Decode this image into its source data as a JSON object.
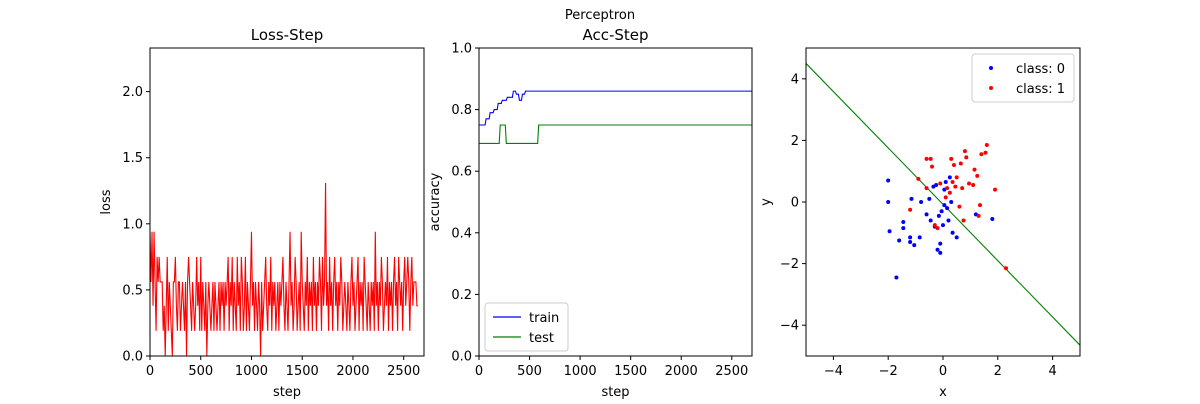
{
  "figure_title": "Perceptron",
  "chart_data": [
    {
      "type": "line",
      "title": "Loss-Step",
      "xlabel": "step",
      "ylabel": "loss",
      "xlim": [
        0,
        2700
      ],
      "ylim": [
        0,
        2.33
      ],
      "xticks": [
        0,
        500,
        1000,
        1500,
        2000,
        2500
      ],
      "yticks": [
        0.0,
        0.5,
        1.0,
        1.5,
        2.0
      ],
      "xtick_labels": [
        "0",
        "500",
        "1000",
        "1500",
        "2000",
        "2500"
      ],
      "ytick_labels": [
        "0.0",
        "0.5",
        "1.0",
        "1.5",
        "2.0"
      ],
      "grid": false,
      "series": [
        {
          "color": "#ff0000",
          "x_start": 0,
          "x_step": 10,
          "values": [
            0.94,
            0.56,
            0.94,
            0.38,
            0.94,
            0.56,
            0.19,
            0.75,
            0.56,
            0.75,
            0.56,
            0.56,
            0.56,
            0.19,
            0.38,
            0.0,
            0.38,
            0.75,
            0.19,
            0.56,
            0.38,
            0.19,
            0.0,
            0.56,
            0.56,
            0.75,
            0.38,
            0.19,
            0.56,
            0.56,
            0.19,
            0.38,
            0.56,
            0.38,
            0.19,
            0.56,
            0.0,
            0.56,
            0.75,
            0.56,
            0.38,
            0.19,
            0.56,
            0.38,
            0.19,
            0.38,
            0.75,
            0.38,
            0.56,
            0.19,
            0.75,
            0.19,
            0.56,
            0.38,
            0.19,
            0.56,
            0.0,
            0.38,
            0.56,
            0.38,
            0.19,
            0.38,
            0.56,
            0.19,
            0.56,
            0.38,
            0.19,
            0.38,
            0.56,
            0.19,
            0.56,
            0.38,
            0.56,
            0.19,
            0.56,
            0.38,
            0.56,
            0.75,
            0.19,
            0.56,
            0.38,
            0.75,
            0.19,
            0.56,
            0.38,
            0.19,
            0.75,
            0.38,
            0.56,
            0.19,
            0.75,
            0.56,
            0.19,
            0.38,
            0.75,
            0.19,
            0.56,
            0.38,
            0.19,
            0.56,
            0.94,
            0.38,
            0.56,
            0.19,
            0.56,
            0.38,
            0.19,
            0.56,
            0.38,
            0.0,
            0.56,
            0.19,
            0.38,
            0.56,
            0.75,
            0.38,
            0.19,
            0.56,
            0.38,
            0.75,
            0.19,
            0.56,
            0.38,
            0.56,
            0.19,
            0.38,
            0.56,
            0.19,
            0.56,
            0.38,
            0.56,
            0.75,
            0.38,
            0.19,
            0.56,
            0.38,
            0.19,
            0.56,
            0.94,
            0.38,
            0.56,
            0.19,
            0.38,
            0.75,
            0.56,
            0.19,
            0.38,
            0.56,
            0.19,
            0.94,
            0.56,
            0.38,
            0.19,
            0.56,
            0.38,
            0.75,
            0.19,
            0.56,
            0.38,
            0.56,
            0.19,
            0.75,
            0.38,
            0.56,
            0.19,
            0.56,
            0.38,
            0.75,
            0.56,
            0.19,
            0.75,
            0.38,
            0.56,
            1.31,
            0.38,
            0.56,
            0.19,
            0.75,
            0.38,
            0.56,
            0.19,
            0.56,
            0.75,
            0.38,
            0.56,
            0.19,
            0.56,
            0.38,
            0.75,
            0.56,
            0.19,
            0.38,
            0.56,
            0.38,
            0.19,
            0.56,
            0.38,
            0.19,
            0.56,
            0.75,
            0.38,
            0.56,
            0.19,
            0.38,
            0.56,
            0.75,
            0.19,
            0.56,
            0.38,
            0.56,
            0.19,
            0.75,
            0.56,
            0.38,
            0.19,
            0.56,
            0.38,
            0.19,
            0.56,
            0.38,
            0.56,
            0.19,
            0.94,
            0.38,
            0.56,
            0.19,
            0.56,
            0.38,
            0.75,
            0.56,
            0.19,
            0.38,
            0.56,
            0.38,
            0.75,
            0.19,
            0.56,
            0.38,
            0.56,
            0.19,
            0.56,
            0.75,
            0.38,
            0.56,
            0.19,
            0.75,
            0.56,
            0.38,
            0.56,
            0.19,
            0.56,
            0.75,
            0.38,
            0.56,
            0.75,
            0.56,
            0.19,
            0.56,
            0.75,
            0.38,
            0.56,
            0.56,
            0.56,
            0.38,
            0.38
          ]
        }
      ]
    },
    {
      "type": "line",
      "title": "Acc-Step",
      "xlabel": "step",
      "ylabel": "accuracy",
      "xlim": [
        0,
        2700
      ],
      "ylim": [
        0,
        1.0
      ],
      "xticks": [
        0,
        500,
        1000,
        1500,
        2000,
        2500
      ],
      "yticks": [
        0.0,
        0.2,
        0.4,
        0.6,
        0.8,
        1.0
      ],
      "xtick_labels": [
        "0",
        "500",
        "1000",
        "1500",
        "2000",
        "2500"
      ],
      "ytick_labels": [
        "0.0",
        "0.2",
        "0.4",
        "0.6",
        "0.8",
        "1.0"
      ],
      "grid": false,
      "legend_position": "lower-left",
      "series": [
        {
          "name": "train",
          "color": "#0000ff",
          "points": [
            [
              0,
              0.75
            ],
            [
              60,
              0.75
            ],
            [
              70,
              0.77
            ],
            [
              100,
              0.77
            ],
            [
              110,
              0.79
            ],
            [
              140,
              0.79
            ],
            [
              150,
              0.8
            ],
            [
              180,
              0.8
            ],
            [
              190,
              0.82
            ],
            [
              220,
              0.82
            ],
            [
              230,
              0.83
            ],
            [
              270,
              0.83
            ],
            [
              280,
              0.84
            ],
            [
              330,
              0.84
            ],
            [
              340,
              0.86
            ],
            [
              360,
              0.86
            ],
            [
              370,
              0.85
            ],
            [
              390,
              0.85
            ],
            [
              400,
              0.83
            ],
            [
              420,
              0.83
            ],
            [
              430,
              0.85
            ],
            [
              450,
              0.85
            ],
            [
              460,
              0.86
            ],
            [
              2700,
              0.86
            ]
          ]
        },
        {
          "name": "test",
          "color": "#008000",
          "points": [
            [
              0,
              0.69
            ],
            [
              200,
              0.69
            ],
            [
              210,
              0.75
            ],
            [
              260,
              0.75
            ],
            [
              270,
              0.69
            ],
            [
              580,
              0.69
            ],
            [
              590,
              0.75
            ],
            [
              2700,
              0.75
            ]
          ]
        }
      ]
    },
    {
      "type": "scatter",
      "title": "",
      "xlabel": "x",
      "ylabel": "y",
      "xlim": [
        -5,
        5
      ],
      "ylim": [
        -5,
        5
      ],
      "xticks": [
        -4,
        -2,
        0,
        2,
        4
      ],
      "yticks": [
        -4,
        -2,
        0,
        2,
        4
      ],
      "xtick_labels": [
        "−4",
        "−2",
        "0",
        "2",
        "4"
      ],
      "ytick_labels": [
        "−4",
        "−2",
        "0",
        "2",
        "4"
      ],
      "grid": false,
      "legend_position": "upper-right",
      "series": [
        {
          "name": "class: 0",
          "color": "#0000ff",
          "points": [
            [
              -2.0,
              0.7
            ],
            [
              -2.0,
              0.0
            ],
            [
              -1.95,
              -0.95
            ],
            [
              -1.7,
              -2.45
            ],
            [
              -1.6,
              -1.25
            ],
            [
              -1.45,
              -0.65
            ],
            [
              -1.45,
              -0.85
            ],
            [
              -1.2,
              -1.15
            ],
            [
              -1.2,
              -1.3
            ],
            [
              -1.15,
              0.1
            ],
            [
              -1.05,
              -1.4
            ],
            [
              -0.85,
              -1.15
            ],
            [
              -0.8,
              0.0
            ],
            [
              -0.6,
              -0.4
            ],
            [
              -0.5,
              0.1
            ],
            [
              -0.45,
              -0.6
            ],
            [
              -0.35,
              0.5
            ],
            [
              -0.3,
              -0.8
            ],
            [
              -0.25,
              0.55
            ],
            [
              -0.2,
              -1.55
            ],
            [
              -0.15,
              -0.45
            ],
            [
              -0.1,
              -1.35
            ],
            [
              -0.1,
              -1.65
            ],
            [
              -0.05,
              -0.3
            ],
            [
              0.0,
              -0.75
            ],
            [
              0.05,
              0.4
            ],
            [
              0.05,
              -0.1
            ],
            [
              0.1,
              0.65
            ],
            [
              0.15,
              -0.2
            ],
            [
              0.2,
              -0.6
            ],
            [
              0.25,
              0.8
            ],
            [
              0.3,
              0.0
            ],
            [
              0.35,
              -1.0
            ],
            [
              0.5,
              -1.15
            ],
            [
              1.2,
              -0.4
            ],
            [
              1.8,
              -0.55
            ]
          ]
        },
        {
          "name": "class: 1",
          "color": "#ff0000",
          "points": [
            [
              -1.2,
              -0.25
            ],
            [
              -0.9,
              0.75
            ],
            [
              -0.6,
              0.45
            ],
            [
              -0.6,
              1.4
            ],
            [
              -0.45,
              1.4
            ],
            [
              -0.4,
              1.15
            ],
            [
              -0.3,
              -0.75
            ],
            [
              -0.2,
              -0.85
            ],
            [
              -0.1,
              0.6
            ],
            [
              0.1,
              0.15
            ],
            [
              0.15,
              0.45
            ],
            [
              0.25,
              0.3
            ],
            [
              0.3,
              1.4
            ],
            [
              0.35,
              0.65
            ],
            [
              0.4,
              1.2
            ],
            [
              0.45,
              0.5
            ],
            [
              0.5,
              0.8
            ],
            [
              0.6,
              -0.15
            ],
            [
              0.65,
              1.25
            ],
            [
              0.7,
              0.45
            ],
            [
              0.75,
              -0.6
            ],
            [
              0.8,
              1.65
            ],
            [
              0.85,
              1.45
            ],
            [
              0.95,
              0.6
            ],
            [
              1.1,
              0.55
            ],
            [
              1.15,
              1.05
            ],
            [
              1.25,
              0.85
            ],
            [
              1.3,
              -0.45
            ],
            [
              1.35,
              -0.1
            ],
            [
              1.4,
              1.55
            ],
            [
              1.55,
              1.6
            ],
            [
              1.6,
              1.85
            ],
            [
              1.9,
              0.4
            ],
            [
              2.3,
              -2.15
            ]
          ]
        }
      ],
      "decision_line": {
        "color": "#008000",
        "points": [
          [
            -5,
            4.5
          ],
          [
            5,
            -4.65
          ]
        ]
      }
    }
  ]
}
